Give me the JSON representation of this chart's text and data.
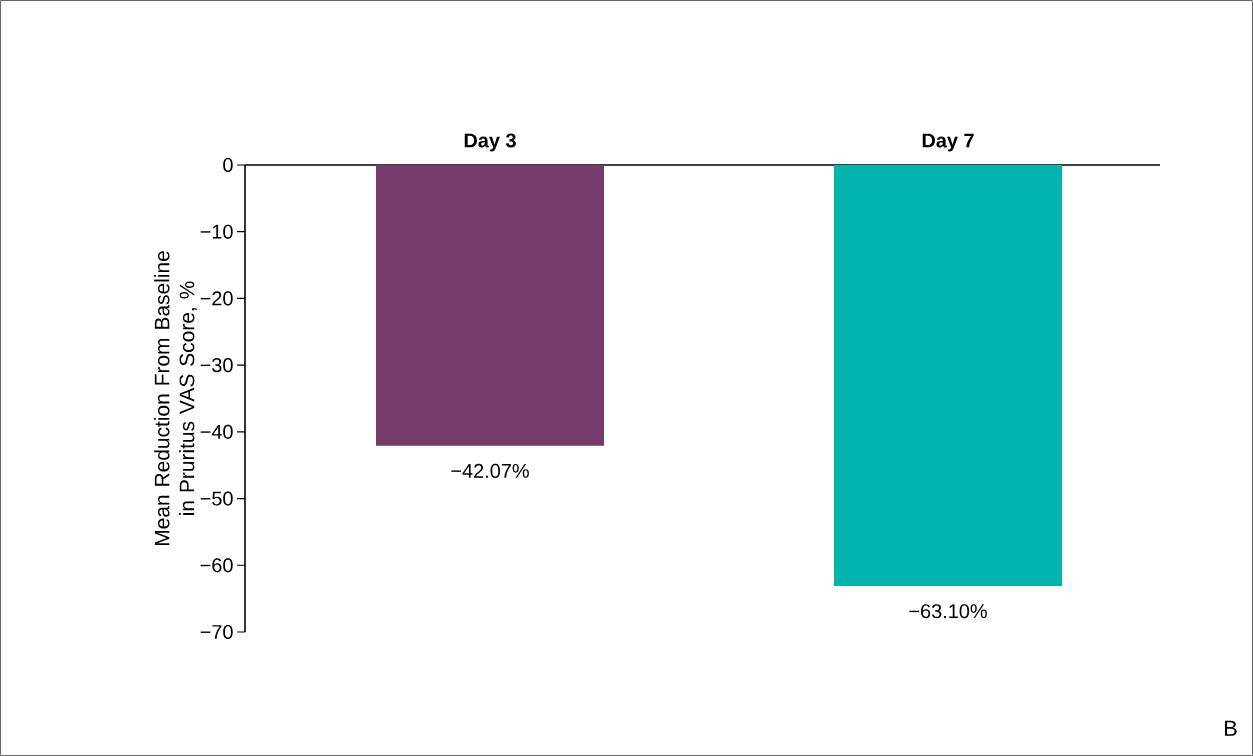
{
  "chart_data": {
    "type": "bar",
    "categories": [
      "Day 3",
      "Day 7"
    ],
    "values": [
      -42.07,
      -63.1
    ],
    "colors": [
      "#743b6b",
      "#00b4ad"
    ],
    "value_labels": [
      "−42.07%",
      "−63.10%"
    ],
    "ylabel": "Mean Reduction From Baseline in Pruritus VAS Score, %",
    "ylim": [
      -70,
      0
    ],
    "yticks": [
      0,
      {
        "value": -10,
        "label": "−10"
      },
      {
        "value": -20,
        "label": "−20"
      },
      {
        "value": -30,
        "label": "−30"
      },
      {
        "value": -40,
        "label": "−40"
      },
      {
        "value": -50,
        "label": "−50"
      },
      {
        "value": -60,
        "label": "−60"
      },
      {
        "value": -70,
        "label": "−70"
      }
    ],
    "annotations": [
      "B"
    ]
  }
}
